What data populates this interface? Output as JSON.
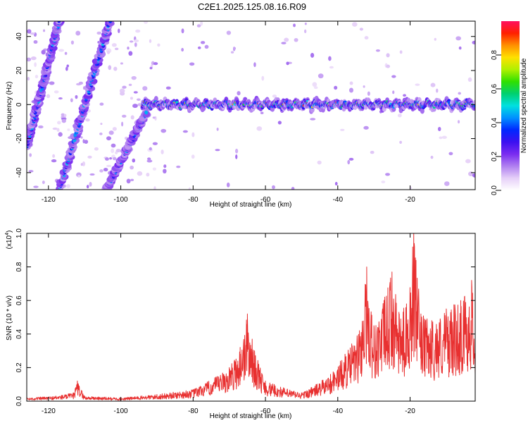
{
  "chart_data": [
    {
      "type": "heatmap",
      "title": "C2E1.2025.125.08.16.R09",
      "xlabel": "Height of straight line (km)",
      "ylabel": "Frequency (Hz)",
      "xlim": [
        -126,
        -2
      ],
      "ylim": [
        -50,
        49
      ],
      "xticks": [
        "-120",
        "-100",
        "-80",
        "-60",
        "-40",
        "-20"
      ],
      "yticks": [
        "-40",
        "-20",
        "0",
        "20",
        "40"
      ],
      "colorbar": {
        "label": "Normalized spectral amplitude",
        "range": [
          0,
          1
        ],
        "ticks": [
          "0.0",
          "0.2",
          "0.4",
          "0.6",
          "0.8"
        ],
        "colors": [
          "#ffffff",
          "#e6d0f8",
          "#b080f0",
          "#7a2cf0",
          "#3c10f0",
          "#0028ff",
          "#0090ff",
          "#00e0e0",
          "#00d070",
          "#30e000",
          "#b0f000",
          "#ffe000",
          "#ff9000",
          "#ff2000",
          "#ff1060"
        ]
      },
      "features": {
        "tones": [
          {
            "x": [
              -126,
              -117
            ],
            "y": [
              -25,
              49
            ]
          },
          {
            "x": [
              -117,
              -103
            ],
            "y": [
              -50,
              49
            ]
          },
          {
            "x": [
              -104,
              -93
            ],
            "y": [
              -50,
              -5
            ]
          }
        ],
        "band": {
          "x": [
            -94,
            -2
          ],
          "freq": 0,
          "spread": 5
        }
      }
    },
    {
      "type": "line",
      "xlabel": "Height of straight line (km)",
      "ylabel": "SNR (10 * v/v)",
      "yscale_label": "(x10",
      "yscale_exp": "4",
      "xlim": [
        -126,
        -2
      ],
      "ylim": [
        0,
        1.0
      ],
      "xticks": [
        "-120",
        "-100",
        "-80",
        "-60",
        "-40",
        "-20"
      ],
      "yticks": [
        "0.0",
        "0.2",
        "0.4",
        "0.6",
        "0.8",
        "1.0"
      ],
      "color": "#e83030",
      "envelope": [
        {
          "x": -126,
          "y": 0.02
        },
        {
          "x": -118,
          "y": 0.03
        },
        {
          "x": -113,
          "y": 0.05
        },
        {
          "x": -112,
          "y": 0.12
        },
        {
          "x": -110,
          "y": 0.03
        },
        {
          "x": -100,
          "y": 0.02
        },
        {
          "x": -90,
          "y": 0.04
        },
        {
          "x": -80,
          "y": 0.07
        },
        {
          "x": -74,
          "y": 0.14
        },
        {
          "x": -70,
          "y": 0.2
        },
        {
          "x": -67,
          "y": 0.32
        },
        {
          "x": -65,
          "y": 0.52
        },
        {
          "x": -63,
          "y": 0.3
        },
        {
          "x": -60,
          "y": 0.12
        },
        {
          "x": -55,
          "y": 0.08
        },
        {
          "x": -50,
          "y": 0.05
        },
        {
          "x": -46,
          "y": 0.1
        },
        {
          "x": -42,
          "y": 0.16
        },
        {
          "x": -38,
          "y": 0.28
        },
        {
          "x": -34,
          "y": 0.42
        },
        {
          "x": -32,
          "y": 0.8
        },
        {
          "x": -30,
          "y": 0.45
        },
        {
          "x": -27,
          "y": 0.62
        },
        {
          "x": -25,
          "y": 0.77
        },
        {
          "x": -23,
          "y": 0.52
        },
        {
          "x": -21,
          "y": 0.58
        },
        {
          "x": -19,
          "y": 1.0
        },
        {
          "x": -17,
          "y": 0.52
        },
        {
          "x": -14,
          "y": 0.48
        },
        {
          "x": -10,
          "y": 0.55
        },
        {
          "x": -6,
          "y": 0.6
        },
        {
          "x": -3,
          "y": 0.72
        },
        {
          "x": -2,
          "y": 0.48
        }
      ]
    }
  ]
}
